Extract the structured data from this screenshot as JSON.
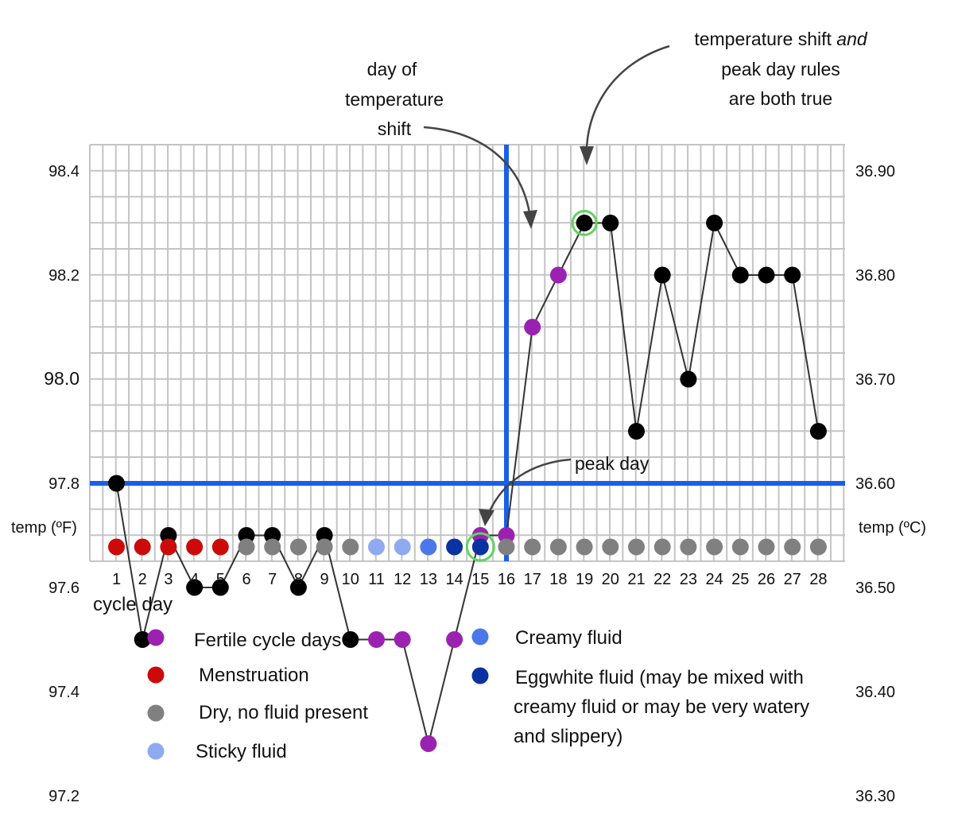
{
  "chart_data": {
    "type": "line",
    "x": [
      1,
      2,
      3,
      4,
      5,
      6,
      7,
      8,
      9,
      10,
      11,
      12,
      13,
      14,
      15,
      16,
      17,
      18,
      19,
      20,
      21,
      22,
      23,
      24,
      25,
      26,
      27,
      28
    ],
    "temperatures_f": [
      97.8,
      97.5,
      97.7,
      97.6,
      97.6,
      97.7,
      97.7,
      97.6,
      97.7,
      97.5,
      97.5,
      97.5,
      97.3,
      97.5,
      97.7,
      97.7,
      98.1,
      98.2,
      98.3,
      98.3,
      97.9,
      98.2,
      98.0,
      98.3,
      98.2,
      98.2,
      98.2,
      97.9
    ],
    "point_types": [
      "normal",
      "normal",
      "normal",
      "normal",
      "normal",
      "normal",
      "normal",
      "normal",
      "normal",
      "normal",
      "fertile",
      "fertile",
      "fertile",
      "fertile",
      "fertile",
      "fertile",
      "fertile",
      "fertile",
      "normal",
      "normal",
      "normal",
      "normal",
      "normal",
      "normal",
      "normal",
      "normal",
      "normal",
      "normal"
    ],
    "fluid": [
      "menstruation",
      "menstruation",
      "menstruation",
      "menstruation",
      "menstruation",
      "dry",
      "dry",
      "dry",
      "dry",
      "dry",
      "sticky",
      "sticky",
      "creamy",
      "eggwhite",
      "eggwhite",
      "dry",
      "dry",
      "dry",
      "dry",
      "dry",
      "dry",
      "dry",
      "dry",
      "dry",
      "dry",
      "dry",
      "dry",
      "dry"
    ],
    "ylim_f": [
      97.0,
      98.5
    ],
    "y_ticks_left": [
      "98.4",
      "98.2",
      "98.0",
      "97.8",
      "97.6",
      "97.4",
      "97.2"
    ],
    "y_ticks_left_values": [
      98.4,
      98.2,
      98.0,
      97.8,
      97.6,
      97.4,
      97.2
    ],
    "y_ticks_right": [
      "36.90",
      "36.80",
      "36.70",
      "36.60",
      "36.50",
      "36.40",
      "36.30"
    ],
    "left_axis_label": "temp (ºF)",
    "right_axis_label": "temp (ºC)",
    "x_axis_label": "cycle day",
    "coverline_f": 97.8,
    "temperature_shift_day": 16,
    "peak_day": 15,
    "both_rules_day": 19,
    "grid": true,
    "annotations": {
      "temp_shift": [
        "day of",
        "temperature",
        "shift"
      ],
      "both_rules_pre": "temperature shift ",
      "both_rules_em": "and",
      "both_rules_rest": [
        "peak day rules",
        "are both true"
      ],
      "peak_day": "peak day"
    }
  },
  "legend": {
    "items": [
      {
        "label": "Fertile cycle days",
        "color": "#9b22b0"
      },
      {
        "label": "Menstruation",
        "color": "#cc0a0a"
      },
      {
        "label": "Dry, no fluid present",
        "color": "#808080"
      },
      {
        "label": "Sticky fluid",
        "color": "#8faaf0"
      },
      {
        "label": "Creamy fluid",
        "color": "#4a78ea"
      },
      {
        "label": "Eggwhite fluid (may be mixed with",
        "label2": "creamy fluid or may be very watery",
        "label3": "and slippery)",
        "color": "#0a32a0"
      }
    ]
  },
  "colors": {
    "normal": "#000000",
    "fertile": "#9b22b0",
    "menstruation": "#cc0a0a",
    "dry": "#808080",
    "sticky": "#8faaf0",
    "creamy": "#4a78ea",
    "eggwhite": "#0a32a0",
    "marker_line": "#1a5fe6",
    "highlight": "#5fd45f",
    "grid": "#c4c4c4"
  }
}
